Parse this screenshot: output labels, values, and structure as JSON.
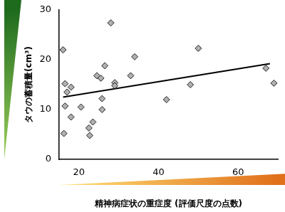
{
  "chart_data": {
    "type": "scatter",
    "x_label": "精神病症状の重症度 (評価尺度の点数)",
    "y_label": "タウの蓄積量(cm³)",
    "x": [
      16,
      16.5,
      16.5,
      16.2,
      17,
      18,
      18,
      20.5,
      22.5,
      22.7,
      23.5,
      24.5,
      25.5,
      25.8,
      25.8,
      26.5,
      28,
      29,
      29,
      33,
      34,
      42,
      48,
      50,
      67,
      69
    ],
    "values": [
      22,
      15.2,
      10.7,
      5.2,
      13.5,
      14.5,
      8.5,
      10.5,
      6.3,
      4.8,
      7.5,
      16.8,
      16.3,
      12.2,
      10.0,
      18.8,
      27.4,
      15.4,
      14.8,
      16.8,
      20.6,
      12,
      15,
      22.3,
      18.3,
      15.3
    ],
    "color": "#b0b0b0",
    "marker": "diamond",
    "trend_line": {
      "x": [
        16,
        68
      ],
      "values": [
        12.5,
        19.2
      ],
      "color": "#000000"
    },
    "xlim": [
      15,
      70
    ],
    "xticks": [
      20,
      40,
      60
    ],
    "ylim": [
      0,
      30
    ],
    "yticks": [
      0,
      10,
      20,
      30
    ],
    "grid": false
  }
}
